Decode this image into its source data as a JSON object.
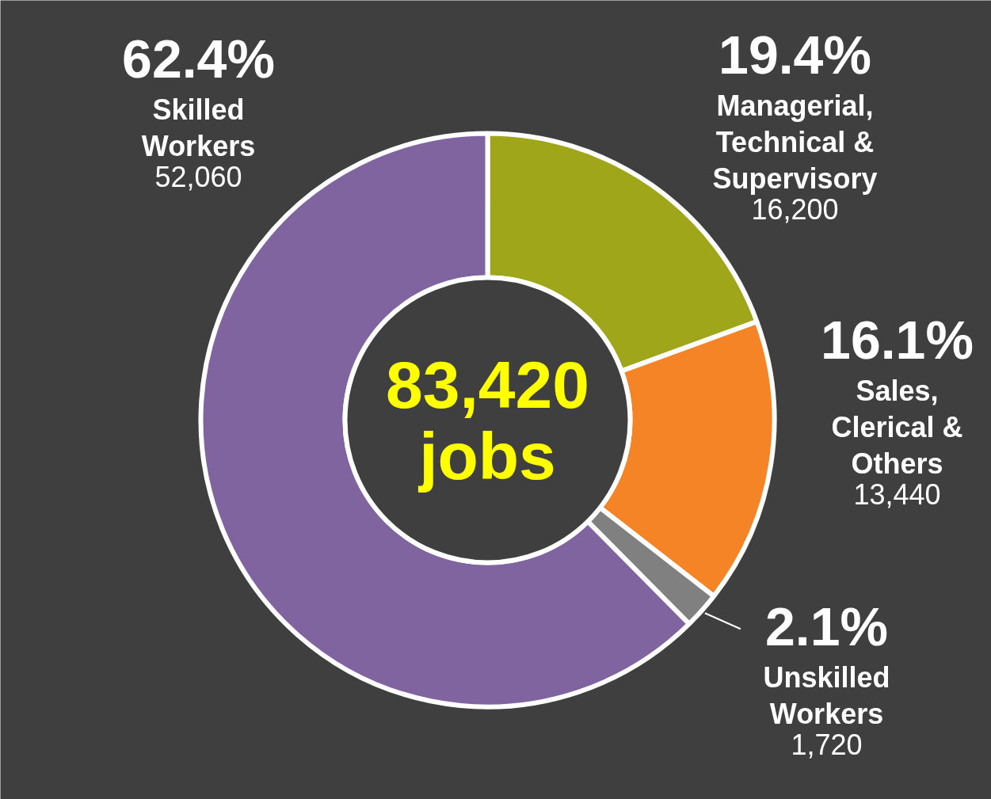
{
  "chart_data": {
    "type": "donut",
    "categories": [
      "Managerial, Technical & Supervisory",
      "Sales, Clerical & Others",
      "Unskilled Workers",
      "Skilled Workers"
    ],
    "values": [
      16200,
      13440,
      1720,
      52060
    ],
    "value_labels": [
      "16,200",
      "13,440",
      "1,720",
      "52,060"
    ],
    "colors": [
      "#a0a619",
      "#f58426",
      "#808080",
      "#7f64a0"
    ],
    "annotations": [
      {
        "text": "19.4%",
        "x": "Managerial, Technical & Supervisory"
      },
      {
        "text": "16.1%",
        "x": "Sales, Clerical & Others"
      },
      {
        "text": "2.1%",
        "x": "Unskilled Workers"
      },
      {
        "text": "62.4%",
        "x": "Skilled Workers"
      },
      "83,420 jobs"
    ]
  }
}
